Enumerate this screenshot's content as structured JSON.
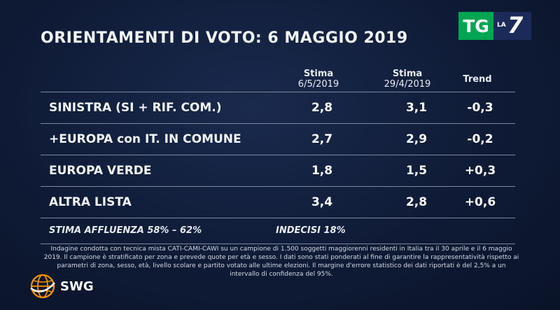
{
  "title": "ORIENTAMENTI DI VOTO: 6 MAGGIO 2019",
  "logo": {
    "tg": "TG",
    "la": "LA",
    "seven": "7"
  },
  "columns": [
    {
      "label": "Stima",
      "sub": "6/5/2019"
    },
    {
      "label": "Stima",
      "sub": "29/4/2019"
    },
    {
      "label": "Trend",
      "sub": ""
    }
  ],
  "chart_data": {
    "type": "table",
    "title": "ORIENTAMENTI DI VOTO: 6 MAGGIO 2019",
    "headers": [
      "",
      "Stima 6/5/2019",
      "Stima 29/4/2019",
      "Trend"
    ],
    "rows": [
      {
        "party": "SINISTRA (SI + RIF. COM.)",
        "stima_6_5": "2,8",
        "stima_29_4": "3,1",
        "trend": "-0,3"
      },
      {
        "party": "+EUROPA con IT. IN COMUNE",
        "stima_6_5": "2,7",
        "stima_29_4": "2,9",
        "trend": "-0,2"
      },
      {
        "party": "EUROPA VERDE",
        "stima_6_5": "1,8",
        "stima_29_4": "1,5",
        "trend": "+0,3"
      },
      {
        "party": "ALTRA LISTA",
        "stima_6_5": "3,4",
        "stima_29_4": "2,8",
        "trend": "+0,6"
      }
    ]
  },
  "footer": {
    "affluenza": "STIMA AFFLUENZA  58% – 62%",
    "indecisi": "INDECISI  18%"
  },
  "note": "Indagine condotta con tecnica mista CATI-CAMI-CAWI su un campione di 1.500 soggetti maggiorenni residenti in Italia tra il 30 aprile e il 6 maggio 2019. Il campione è stratificato per zona e prevede quote per età e sesso. I dati sono stati ponderati al fine di garantire la rappresentatività rispetto ai parametri di zona, sesso, età, livello scolare e partito votato alle ultime elezioni. Il margine d'errore statistico dei dati riportati è del 2,5% a un intervallo di confidenza del 95%.",
  "brand": {
    "name": "SWG",
    "globe_color": "#f39200"
  }
}
